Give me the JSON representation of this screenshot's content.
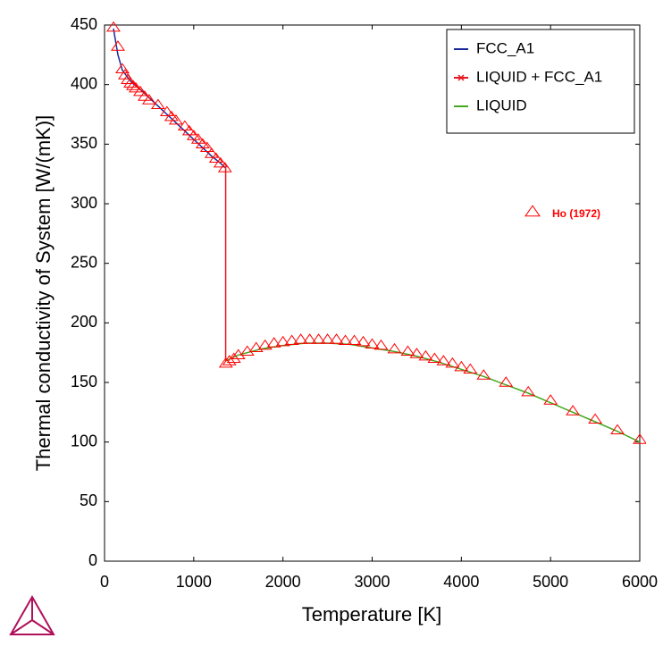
{
  "chart_data": {
    "type": "line",
    "xlabel": "Temperature [K]",
    "ylabel": "Thermal conductivity of System [W/(mK)]",
    "xlim": [
      0,
      6000
    ],
    "xticks": [
      0,
      1000,
      2000,
      3000,
      4000,
      5000,
      6000
    ],
    "ylim": [
      0,
      450
    ],
    "yticks": [
      0,
      50,
      100,
      150,
      200,
      250,
      300,
      350,
      400,
      450
    ],
    "legend": "upper right",
    "series": [
      {
        "name": "FCC_A1",
        "color": "#1a2a9c",
        "x": [
          100,
          150,
          200,
          300,
          400,
          500,
          600,
          700,
          800,
          900,
          1000,
          1100,
          1200,
          1300,
          1358
        ],
        "values": [
          447,
          425,
          412,
          402,
          396,
          389,
          382,
          375,
          368,
          361,
          354,
          347,
          340,
          334,
          330
        ]
      },
      {
        "name": "LIQUID + FCC_A1",
        "color": "#e8141e",
        "x": [
          1358,
          1358
        ],
        "values": [
          330,
          168
        ]
      },
      {
        "name": "LIQUID",
        "color": "#44a820",
        "x": [
          1358,
          1500,
          1750,
          2000,
          2250,
          2500,
          2750,
          3000,
          3250,
          3500,
          3750,
          4000,
          4250,
          4500,
          4750,
          5000,
          5250,
          5500,
          5750,
          6000
        ],
        "values": [
          168,
          173,
          178,
          181,
          183,
          183,
          182,
          179,
          176,
          172,
          167,
          161,
          155,
          148,
          141,
          133,
          125,
          117,
          109,
          100
        ]
      },
      {
        "name": "Ho (1972)",
        "type": "scatter",
        "color": "#ff0000",
        "x": [
          100,
          150,
          200,
          230,
          260,
          290,
          320,
          350,
          400,
          450,
          500,
          600,
          700,
          750,
          800,
          900,
          950,
          1000,
          1050,
          1100,
          1150,
          1200,
          1250,
          1300,
          1350,
          1360,
          1400,
          1450,
          1500,
          1600,
          1700,
          1800,
          1900,
          2000,
          2100,
          2200,
          2300,
          2400,
          2500,
          2600,
          2700,
          2800,
          2900,
          3000,
          3100,
          3250,
          3400,
          3500,
          3600,
          3700,
          3800,
          3900,
          4000,
          4100,
          4250,
          4500,
          4750,
          5000,
          5250,
          5500,
          5750,
          6000
        ],
        "values": [
          448,
          432,
          413,
          408,
          404,
          401,
          399,
          397,
          394,
          390,
          387,
          383,
          377,
          373,
          370,
          365,
          361,
          357,
          354,
          350,
          347,
          342,
          338,
          334,
          330,
          166,
          168,
          170,
          173,
          176,
          179,
          181,
          183,
          184,
          185,
          186,
          186,
          186,
          186,
          186,
          185,
          185,
          184,
          182,
          181,
          178,
          176,
          174,
          172,
          170,
          168,
          166,
          163,
          161,
          156,
          150,
          142,
          135,
          126,
          119,
          110,
          102
        ]
      }
    ]
  }
}
